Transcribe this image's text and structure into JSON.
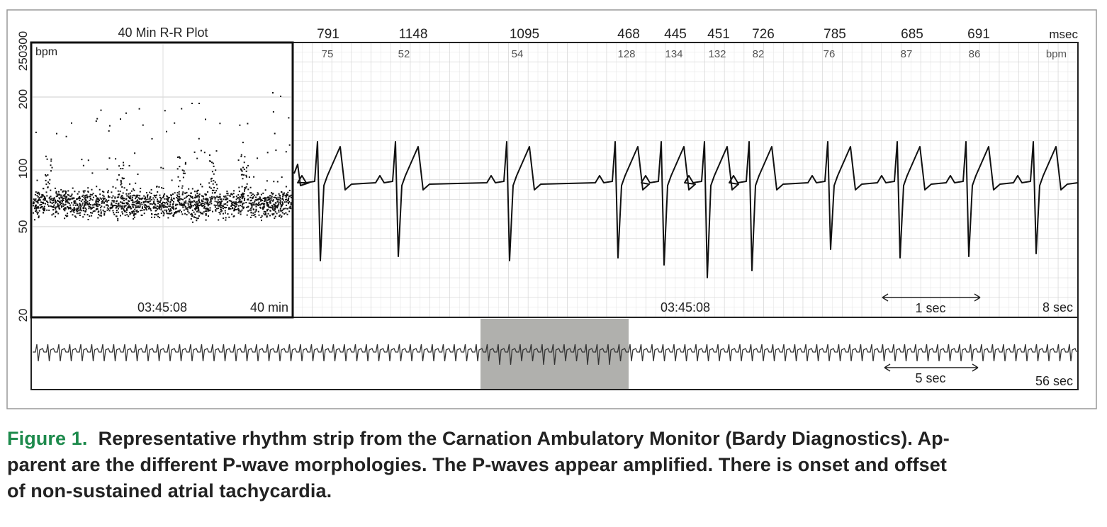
{
  "figure": {
    "rr_plot": {
      "title": "40 Min R-R Plot",
      "unit": "bpm",
      "yticks": [
        "20",
        "50",
        "100",
        "200",
        "250",
        "300"
      ],
      "time": "03:45:08",
      "span": "40 min"
    },
    "strip": {
      "intervals": [
        "791",
        "1148",
        "1095",
        "468",
        "445",
        "451",
        "726",
        "785",
        "685",
        "691"
      ],
      "interval_unit": "msec",
      "rates": [
        "75",
        "52",
        "54",
        "128",
        "134",
        "132",
        "82",
        "76",
        "87",
        "86"
      ],
      "rate_unit": "bpm",
      "time": "03:45:08",
      "scale": "1 sec",
      "span": "8 sec"
    },
    "overview": {
      "scale": "5 sec",
      "span": "56 sec"
    }
  },
  "caption": {
    "label": "Figure 1.",
    "lines": [
      "Representative rhythm strip from the Carnation Ambulatory Monitor (Bardy Diagnostics). Ap-",
      "parent are the different P-wave morphologies. The P-waves appear amplified. There is onset and offset",
      "of non-sustained atrial tachycardia."
    ]
  }
}
